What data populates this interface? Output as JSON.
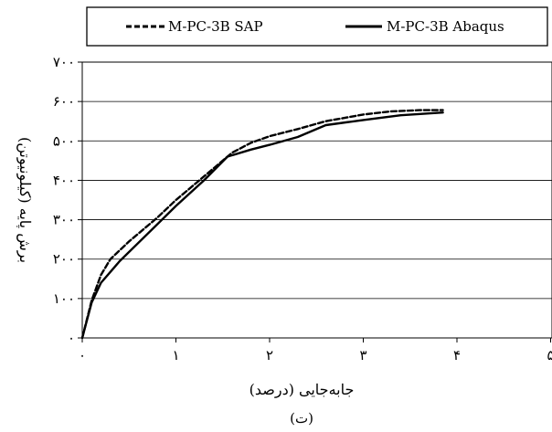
{
  "chart_data": {
    "type": "line",
    "xlabel": "جابه‌جایی (درصد)",
    "ylabel": "برش پایه (کیلونیوتن)",
    "caption": "(ت)",
    "xlim": [
      0,
      5
    ],
    "ylim": [
      0,
      700
    ],
    "x_ticks": [
      0,
      1,
      2,
      3,
      4,
      5
    ],
    "y_ticks": [
      0,
      100,
      200,
      300,
      400,
      500,
      600,
      700
    ],
    "x_tick_labels": [
      "۰",
      "۱",
      "۲",
      "۳",
      "۴",
      "۵"
    ],
    "y_tick_labels": [
      "۰",
      "۱۰۰",
      "۲۰۰",
      "۳۰۰",
      "۴۰۰",
      "۵۰۰",
      "۶۰۰",
      "۷۰۰"
    ],
    "grid": "horizontal",
    "legend_position": "top",
    "series": [
      {
        "name": "M-PC-3B SAP",
        "style": "dashed",
        "color": "#000000",
        "points": [
          [
            0,
            0
          ],
          [
            0.1,
            95
          ],
          [
            0.2,
            160
          ],
          [
            0.3,
            200
          ],
          [
            0.5,
            245
          ],
          [
            0.8,
            305
          ],
          [
            1.0,
            350
          ],
          [
            1.3,
            410
          ],
          [
            1.6,
            470
          ],
          [
            1.8,
            495
          ],
          [
            2.0,
            512
          ],
          [
            2.3,
            530
          ],
          [
            2.6,
            550
          ],
          [
            3.0,
            567
          ],
          [
            3.3,
            575
          ],
          [
            3.6,
            578
          ],
          [
            3.85,
            578
          ]
        ]
      },
      {
        "name": "M-PC-3B Abaqus",
        "style": "solid",
        "color": "#000000",
        "points": [
          [
            0,
            0
          ],
          [
            0.1,
            90
          ],
          [
            0.2,
            140
          ],
          [
            0.4,
            195
          ],
          [
            0.7,
            265
          ],
          [
            1.0,
            335
          ],
          [
            1.3,
            400
          ],
          [
            1.55,
            460
          ],
          [
            1.8,
            478
          ],
          [
            2.0,
            490
          ],
          [
            2.3,
            510
          ],
          [
            2.6,
            540
          ],
          [
            3.0,
            553
          ],
          [
            3.4,
            565
          ],
          [
            3.85,
            572
          ]
        ]
      }
    ]
  }
}
